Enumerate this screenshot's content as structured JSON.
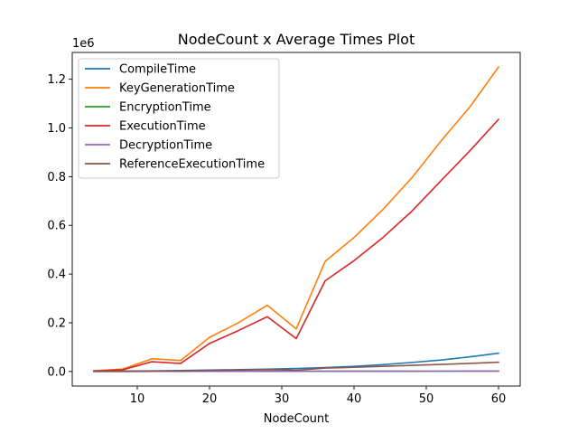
{
  "chart_data": {
    "type": "line",
    "title": "NodeCount x Average Times Plot",
    "xlabel": "NodeCount",
    "ylabel": "",
    "y_scale_label": "1e6",
    "xlim": [
      1,
      63
    ],
    "ylim": [
      -60000,
      1310000
    ],
    "x_ticks": [
      10,
      20,
      30,
      40,
      50,
      60
    ],
    "y_ticks": [
      0,
      200000,
      400000,
      600000,
      800000,
      1000000,
      1200000
    ],
    "y_tick_labels": [
      "0.0",
      "0.2",
      "0.4",
      "0.6",
      "0.8",
      "1.0",
      "1.2"
    ],
    "legend_position": "top-left",
    "grid": false,
    "x": [
      4,
      8,
      12,
      16,
      20,
      24,
      28,
      32,
      36,
      40,
      44,
      48,
      52,
      56,
      60
    ],
    "series": [
      {
        "name": "CompileTime",
        "color": "#1f77b4",
        "values": [
          500,
          1500,
          2500,
          4000,
          5500,
          7500,
          9500,
          12000,
          16000,
          21000,
          28000,
          37000,
          47000,
          60000,
          75000
        ]
      },
      {
        "name": "KeyGenerationTime",
        "color": "#ff7f0e",
        "values": [
          3000,
          10000,
          52000,
          45000,
          140000,
          200000,
          272000,
          175000,
          452000,
          550000,
          665000,
          795000,
          945000,
          1085000,
          1250000
        ]
      },
      {
        "name": "EncryptionTime",
        "color": "#2ca02c",
        "values": [
          100,
          200,
          300,
          400,
          500,
          600,
          700,
          800,
          900,
          1000,
          1100,
          1200,
          1300,
          1400,
          1500
        ]
      },
      {
        "name": "ExecutionTime",
        "color": "#d62728",
        "values": [
          2000,
          7000,
          40000,
          33000,
          115000,
          168000,
          225000,
          135000,
          372000,
          455000,
          550000,
          658000,
          782000,
          905000,
          1035000
        ]
      },
      {
        "name": "DecryptionTime",
        "color": "#9467bd",
        "values": [
          100,
          200,
          300,
          400,
          500,
          600,
          700,
          800,
          900,
          1000,
          1100,
          1200,
          1300,
          1400,
          1500
        ]
      },
      {
        "name": "ReferenceExecutionTime",
        "color": "#8c564b",
        "values": [
          500,
          1000,
          1500,
          1500,
          4000,
          5500,
          7500,
          5000,
          14000,
          17000,
          21000,
          25000,
          29000,
          33000,
          38000
        ]
      }
    ]
  }
}
